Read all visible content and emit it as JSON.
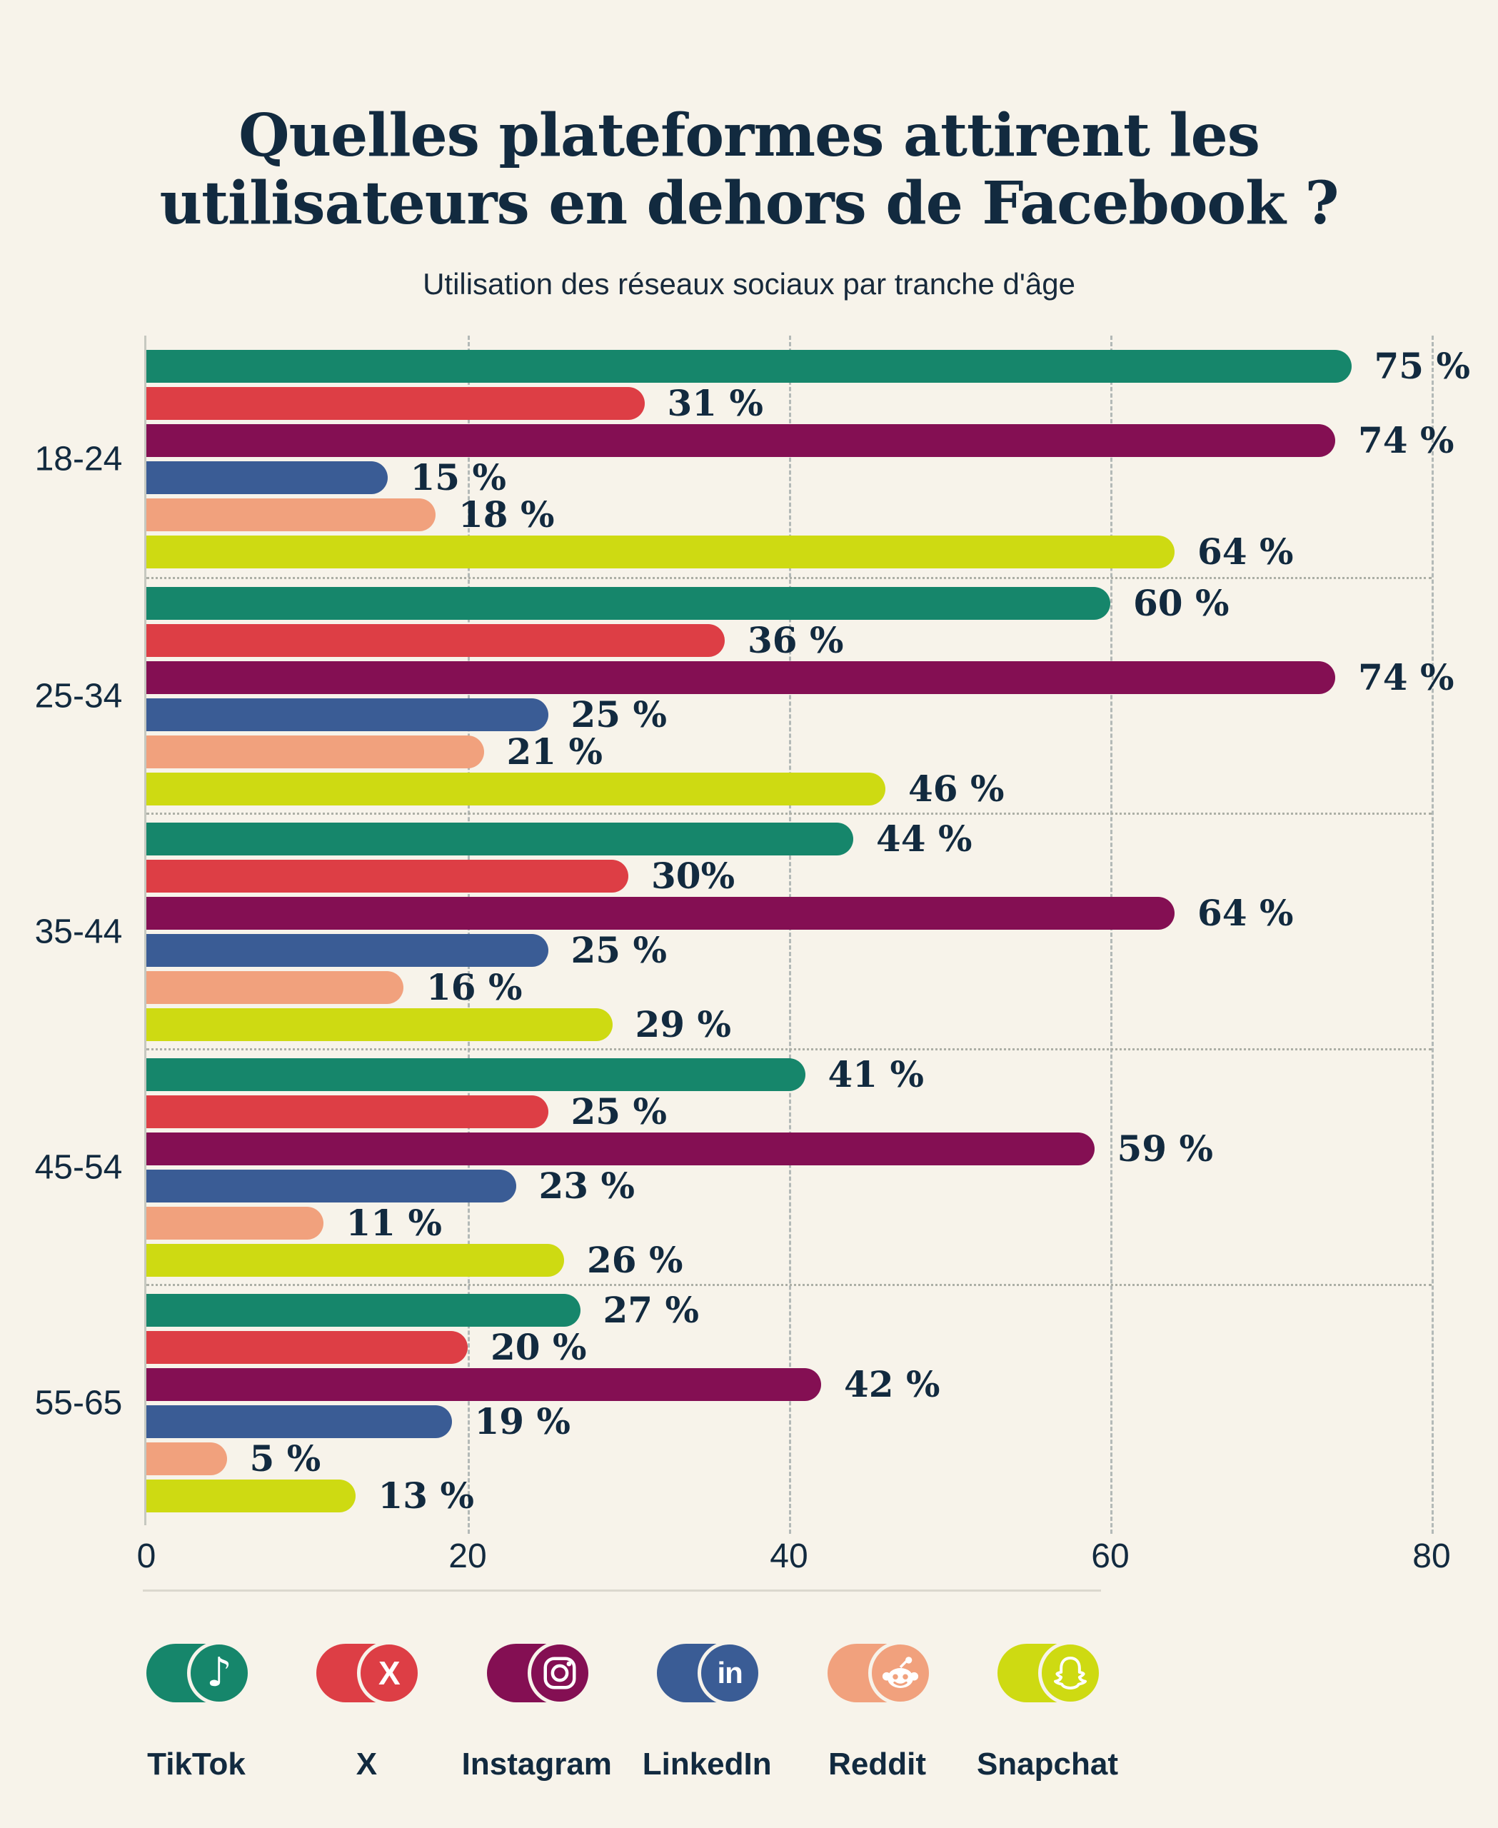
{
  "title": {
    "line1": "Quelles plateformes attirent les",
    "line2": "utilisateurs en dehors de Facebook ?"
  },
  "subtitle": "Utilisation des réseaux sociaux par tranche d'âge",
  "colors": {
    "background": "#f7f3ea",
    "text_navy": "#122a3f",
    "gridline": "#b3b9b7",
    "separator": "#acafa6",
    "divider": "#dbd8ce",
    "tiktok": "#16866b",
    "x": "#dd3e45",
    "instagram": "#840f53",
    "linkedin": "#3a5c95",
    "reddit": "#f1a17d",
    "snapchat": "#ceda12"
  },
  "chart_data": {
    "type": "bar",
    "orientation": "horizontal",
    "title": "Quelles plateformes attirent les utilisateurs en dehors de Facebook ?",
    "subtitle": "Utilisation des réseaux sociaux par tranche d'âge",
    "xlim": [
      0,
      80
    ],
    "x_ticks": [
      0,
      20,
      40,
      60,
      80
    ],
    "x_tick_labels": [
      "0",
      "20",
      "40",
      "60",
      "80"
    ],
    "grid": "vertical-dashed",
    "legend_position": "bottom",
    "value_suffix": "%",
    "categories": [
      "18-24",
      "25-34",
      "35-44",
      "45-54",
      "55-65"
    ],
    "series": [
      {
        "name": "TikTok",
        "color": "#16866b",
        "values": [
          75,
          60,
          44,
          41,
          27
        ],
        "labels": [
          "75 %",
          "60 %",
          "44 %",
          "41 %",
          "27 %"
        ]
      },
      {
        "name": "X",
        "color": "#dd3e45",
        "values": [
          31,
          36,
          30,
          25,
          20
        ],
        "labels": [
          "31 %",
          "36 %",
          "30%",
          "25 %",
          "20 %"
        ]
      },
      {
        "name": "Instagram",
        "color": "#840f53",
        "values": [
          74,
          74,
          64,
          59,
          42
        ],
        "labels": [
          "74 %",
          "74 %",
          "64 %",
          "59 %",
          "42 %"
        ]
      },
      {
        "name": "LinkedIn",
        "color": "#3a5c95",
        "values": [
          15,
          25,
          25,
          23,
          19
        ],
        "labels": [
          "15 %",
          "25 %",
          "25 %",
          "23 %",
          "19 %"
        ]
      },
      {
        "name": "Reddit",
        "color": "#f1a17d",
        "values": [
          18,
          21,
          16,
          11,
          5
        ],
        "labels": [
          "18 %",
          "21 %",
          "16 %",
          "11 %",
          "5 %"
        ]
      },
      {
        "name": "Snapchat",
        "color": "#ceda12",
        "values": [
          64,
          46,
          29,
          26,
          13
        ],
        "labels": [
          "64 %",
          "46 %",
          "29 %",
          "26 %",
          "13 %"
        ]
      }
    ]
  },
  "legend": [
    {
      "label": "TikTok",
      "color": "#16866b",
      "icon": "tiktok-icon"
    },
    {
      "label": "X",
      "color": "#dd3e45",
      "icon": "x-icon"
    },
    {
      "label": "Instagram",
      "color": "#840f53",
      "icon": "instagram-icon"
    },
    {
      "label": "LinkedIn",
      "color": "#3a5c95",
      "icon": "linkedin-icon"
    },
    {
      "label": "Reddit",
      "color": "#f1a17d",
      "icon": "reddit-icon"
    },
    {
      "label": "Snapchat",
      "color": "#ceda12",
      "icon": "snapchat-icon"
    }
  ]
}
